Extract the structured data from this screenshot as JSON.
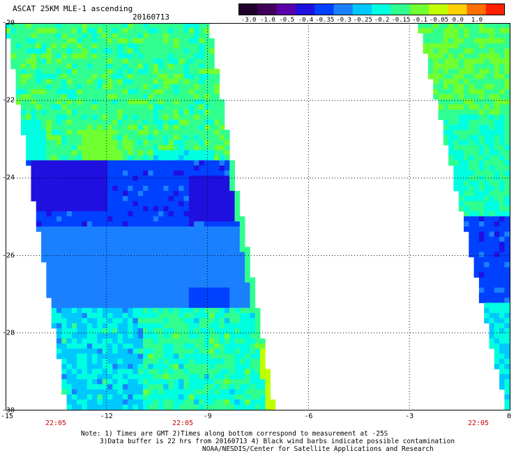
{
  "header": {
    "title": "ASCAT 25KM MLE-1 ascending",
    "date": "20160713"
  },
  "colorbar": {
    "labels": [
      "-3.0",
      "-1.0",
      "-0.5",
      "-0.4",
      "-0.35",
      "-0.3",
      "-0.25",
      "-0.2",
      "-0.15",
      "-0.1",
      "-0.05",
      "0.0",
      "1.0"
    ],
    "colors": [
      "#20002a",
      "#40005a",
      "#5a00aa",
      "#2010e0",
      "#0040ff",
      "#1a80ff",
      "#00c8ff",
      "#00ffe0",
      "#30ff90",
      "#70ff30",
      "#c0ff00",
      "#ffd000",
      "#ff7000",
      "#ff2000"
    ]
  },
  "map": {
    "lat_range": [
      -30,
      -20
    ],
    "lon_range": [
      -15,
      0
    ],
    "lat_labels": [
      "-20",
      "-22",
      "-24",
      "-26",
      "-28",
      "-30"
    ],
    "lon_labels": [
      "-15",
      "-12",
      "-9",
      "-6",
      "-3",
      "0"
    ],
    "time_labels": [
      "22:05",
      "22:05",
      "22:05"
    ]
  },
  "notes": {
    "line1": "Note: 1) Times are GMT 2)Times along bottom correspond to measurement at -25S",
    "line2": "3)Data buffer is 22 hrs from 20160713 4) Black wind barbs indicate possible contamination",
    "line3": "NOAA/NESDIS/Center for Satellite Applications and Research"
  }
}
